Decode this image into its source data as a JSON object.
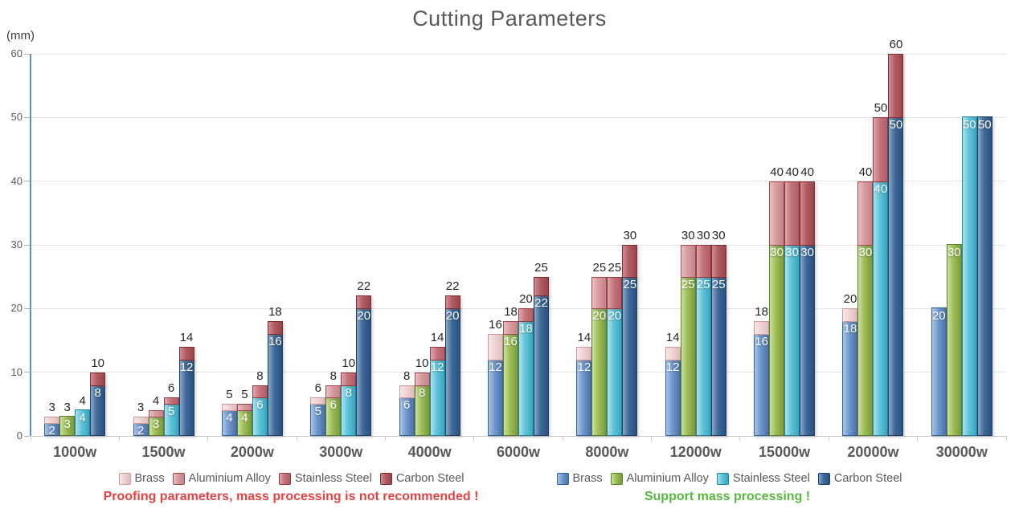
{
  "title": "Cutting Parameters",
  "y_axis": {
    "unit_label": "(mm)",
    "min": 0,
    "max": 60,
    "step": 10
  },
  "chart_data": {
    "type": "bar",
    "title": "Cutting Parameters",
    "ylabel": "(mm)",
    "ylim": [
      0,
      60
    ],
    "grid": true,
    "legend_position": "bottom",
    "categories": [
      "1000w",
      "1500w",
      "2000w",
      "3000w",
      "4000w",
      "6000w",
      "8000w",
      "12000w",
      "15000w",
      "20000w",
      "30000w"
    ],
    "materials": [
      {
        "name": "Brass",
        "mass_processing": {
          "values": [
            2,
            2,
            4,
            5,
            6,
            12,
            12,
            12,
            16,
            18,
            20
          ],
          "fill": [
            "#aac6e6",
            "#6f98cd",
            "#4a72a8"
          ],
          "border": "#35629a"
        },
        "proofing": {
          "values": [
            3,
            3,
            5,
            6,
            8,
            16,
            14,
            14,
            18,
            20,
            null
          ],
          "fill": [
            "#f8e8e9",
            "#eed3d5",
            "#e0bcbf"
          ],
          "border": "#c9999b"
        }
      },
      {
        "name": "Aluminium Alloy",
        "mass_processing": {
          "values": [
            3,
            3,
            4,
            6,
            8,
            16,
            20,
            25,
            30,
            30,
            30
          ],
          "fill": [
            "#cde09f",
            "#9cbd56",
            "#7a9a3c"
          ],
          "border": "#5f7e2d"
        },
        "proofing": {
          "values": [
            3,
            4,
            5,
            8,
            10,
            18,
            25,
            30,
            40,
            40,
            null
          ],
          "fill": [
            "#e8c0c4",
            "#d79a9e",
            "#c3858a"
          ],
          "border": "#9e4a4e"
        }
      },
      {
        "name": "Stainless Steel",
        "mass_processing": {
          "values": [
            4,
            5,
            6,
            8,
            12,
            18,
            20,
            25,
            30,
            40,
            50
          ],
          "fill": [
            "#aee2ed",
            "#5fc3d9",
            "#38a6be"
          ],
          "border": "#1f869d"
        },
        "proofing": {
          "values": [
            4,
            6,
            8,
            10,
            14,
            20,
            25,
            30,
            40,
            50,
            null
          ],
          "fill": [
            "#dda8ad",
            "#c4737a",
            "#b05d64"
          ],
          "border": "#8e3a40"
        }
      },
      {
        "name": "Carbon Steel",
        "mass_processing": {
          "values": [
            8,
            12,
            16,
            20,
            20,
            22,
            25,
            25,
            30,
            50,
            50
          ],
          "fill": [
            "#8aa8c9",
            "#3d6899",
            "#29527e"
          ],
          "border": "#1d3f66"
        },
        "proofing": {
          "values": [
            10,
            14,
            18,
            22,
            22,
            25,
            30,
            30,
            40,
            60,
            null
          ],
          "fill": [
            "#d18d93",
            "#b05b61",
            "#9a454b"
          ],
          "border": "#7a2c31"
        }
      }
    ]
  },
  "legends": {
    "proofing": {
      "series_key": "proofing",
      "items": [
        "Brass",
        "Aluminium Alloy",
        "Stainless Steel",
        "Carbon Steel"
      ]
    },
    "mass": {
      "series_key": "mass_processing",
      "items": [
        "Brass",
        "Aluminium Alloy",
        "Stainless Steel",
        "Carbon Steel"
      ]
    }
  },
  "captions": {
    "proofing": {
      "text": "Proofing parameters, mass processing is not recommended !",
      "color": "#e84141"
    },
    "mass": {
      "text": "Support mass processing !",
      "color": "#56b93e"
    }
  }
}
